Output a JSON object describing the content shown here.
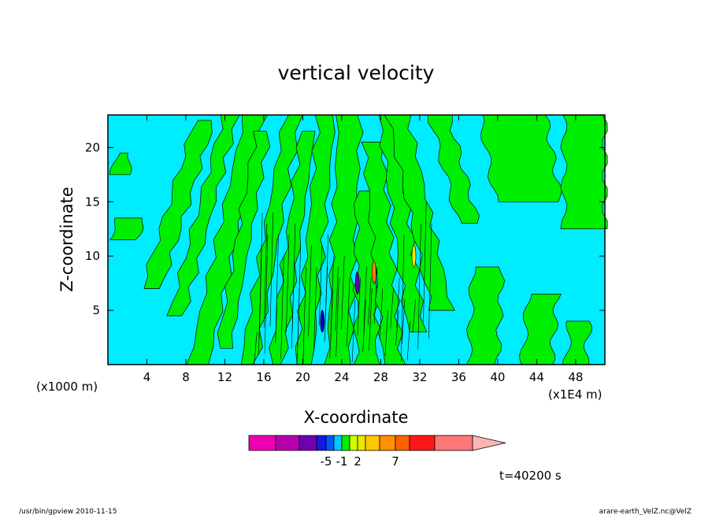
{
  "chart_data": {
    "type": "heatmap",
    "title": "vertical velocity",
    "xlabel": "X-coordinate",
    "ylabel": "Z-coordinate",
    "x_unit_left": "(x1000 m)",
    "x_unit_right": "(x1E4 m)",
    "xlim": [
      0,
      51
    ],
    "ylim": [
      0,
      23
    ],
    "x_ticks": [
      4,
      8,
      12,
      16,
      20,
      24,
      28,
      32,
      36,
      40,
      44,
      48
    ],
    "y_ticks": [
      5,
      10,
      15,
      20
    ],
    "background_color": "#00ecff",
    "positive_color": "#00ee00",
    "bands": [
      {
        "x0": 0.0,
        "x1": 2.8,
        "bottom": 11.5,
        "top": 13.5,
        "slope": 0.5
      },
      {
        "x0": 3.5,
        "x1": 5.5,
        "bottom": 7.0,
        "top": 22.5,
        "slope": 0.35
      },
      {
        "x0": 6.3,
        "x1": 7.8,
        "bottom": 4.5,
        "top": 23.0,
        "slope": 0.3
      },
      {
        "x0": 8.3,
        "x1": 10.3,
        "bottom": 0.0,
        "top": 23.0,
        "slope": 0.25
      },
      {
        "x0": 11.2,
        "x1": 12.6,
        "bottom": 1.5,
        "top": 21.5,
        "slope": 0.2
      },
      {
        "x0": 13.6,
        "x1": 15.2,
        "bottom": 0.0,
        "top": 23.0,
        "slope": 0.2
      },
      {
        "x0": 16.6,
        "x1": 18.0,
        "bottom": 0.0,
        "top": 21.5,
        "slope": 0.15
      },
      {
        "x0": 19.3,
        "x1": 21.0,
        "bottom": 0.0,
        "top": 23.0,
        "slope": 0.1
      },
      {
        "x0": 22.5,
        "x1": 24.8,
        "bottom": 0.0,
        "top": 23.0,
        "slope": 0.05
      },
      {
        "x0": 25.5,
        "x1": 27.6,
        "bottom": 0.0,
        "top": 16.0,
        "slope": 0.0
      },
      {
        "x0": 28.3,
        "x1": 30.2,
        "bottom": 0.0,
        "top": 20.5,
        "slope": -0.1
      },
      {
        "x0": 30.8,
        "x1": 32.5,
        "bottom": 3.0,
        "top": 23.0,
        "slope": -0.15
      },
      {
        "x0": 33.2,
        "x1": 35.3,
        "bottom": 5.0,
        "top": 23.0,
        "slope": -0.25
      },
      {
        "x0": 36.0,
        "x1": 38.0,
        "bottom": 13.0,
        "top": 23.0,
        "slope": -0.3
      },
      {
        "x0": 37.0,
        "x1": 40.0,
        "bottom": 0.0,
        "top": 9.0,
        "slope": 0.05
      },
      {
        "x0": 39.8,
        "x1": 46.5,
        "bottom": 15.0,
        "top": 23.0,
        "slope": -0.2
      },
      {
        "x0": 46.8,
        "x1": 51.0,
        "bottom": 12.5,
        "top": 23.0,
        "slope": 0.0
      },
      {
        "x0": 42.5,
        "x1": 45.5,
        "bottom": 0.0,
        "top": 6.5,
        "slope": 0.1
      },
      {
        "x0": 47.0,
        "x1": 49.0,
        "bottom": 0.0,
        "top": 4.0,
        "slope": 0.1
      },
      {
        "x0": 0.5,
        "x1": 2.0,
        "bottom": 17.5,
        "top": 19.5,
        "slope": 0.2
      }
    ],
    "extremes": [
      {
        "x": 27.3,
        "z": 8.5,
        "value": 7,
        "color": "#ff8000"
      },
      {
        "x": 31.4,
        "z": 10.0,
        "value": 2,
        "color": "#e8e800"
      },
      {
        "x": 25.6,
        "z": 7.5,
        "value": -5,
        "color": "#6000b0"
      },
      {
        "x": 22.0,
        "z": 4.0,
        "value": -1,
        "color": "#0000d0"
      }
    ],
    "colorbar": {
      "colors": [
        "#ee00b0",
        "#b800b0",
        "#7000b0",
        "#1818e0",
        "#0058ff",
        "#00c8ff",
        "#00ee00",
        "#d0ff00",
        "#e8e800",
        "#ffc800",
        "#ff9000",
        "#ff6000",
        "#ff1818",
        "#ff7878",
        "#ffb4b4"
      ],
      "labels": [
        {
          "text": "-5",
          "index": 3
        },
        {
          "text": "-1",
          "index": 5
        },
        {
          "text": "2",
          "index": 7
        },
        {
          "text": "7",
          "index": 10
        }
      ]
    }
  },
  "annotations": {
    "time": "t=40200 s",
    "footer_left": "/usr/bin/gpview  2010-11-15",
    "footer_right": "arare-earth_VelZ.nc@VelZ"
  }
}
